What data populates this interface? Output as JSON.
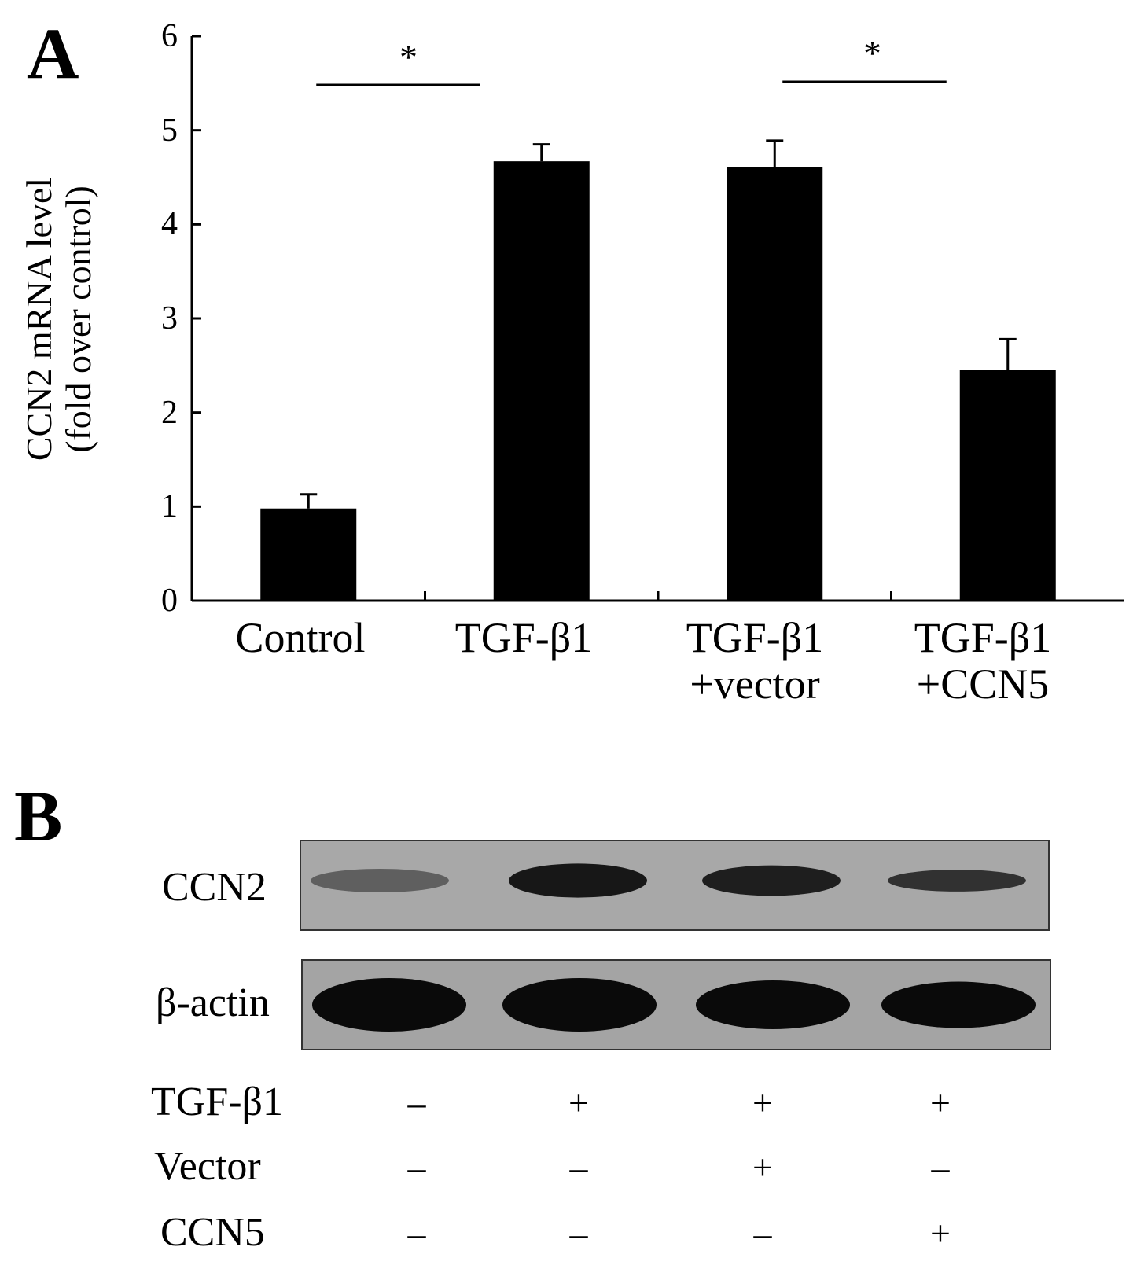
{
  "panel_a_label": "A",
  "panel_b_label": "B",
  "chart_data": {
    "type": "bar",
    "categories": [
      "Control",
      "TGF-β1",
      "TGF-β1\n+vector",
      "TGF-β1\n+CCN5"
    ],
    "values": [
      0.98,
      4.67,
      4.61,
      2.45
    ],
    "errors": [
      0.15,
      0.18,
      0.28,
      0.33
    ],
    "ylabel_line1": "CCN2 mRNA level",
    "ylabel_line2": "(fold over control)",
    "ylim": [
      0,
      6
    ],
    "yticks": [
      "0",
      "1",
      "2",
      "3",
      "4",
      "5",
      "6"
    ],
    "bar_color": "#000000",
    "significance": [
      {
        "from": 0,
        "to": 1,
        "mark": "*"
      },
      {
        "from": 2,
        "to": 3,
        "mark": "*"
      }
    ]
  },
  "western_blot": {
    "rows": [
      {
        "label": "CCN2",
        "intensity": [
          0.35,
          0.9,
          0.85,
          0.7
        ],
        "thickness": [
          0.5,
          0.8,
          0.7,
          0.45
        ]
      },
      {
        "label": "β-actin",
        "intensity": [
          1.0,
          1.0,
          1.0,
          1.0
        ],
        "thickness": [
          1.0,
          1.0,
          0.9,
          0.85
        ]
      }
    ],
    "treatments": [
      {
        "label": "TGF-β1",
        "values": [
          "–",
          "+",
          "+",
          "+"
        ]
      },
      {
        "label": "Vector",
        "values": [
          "–",
          "–",
          "+",
          "–"
        ]
      },
      {
        "label": "CCN5",
        "values": [
          "–",
          "–",
          "–",
          "+"
        ]
      }
    ]
  }
}
